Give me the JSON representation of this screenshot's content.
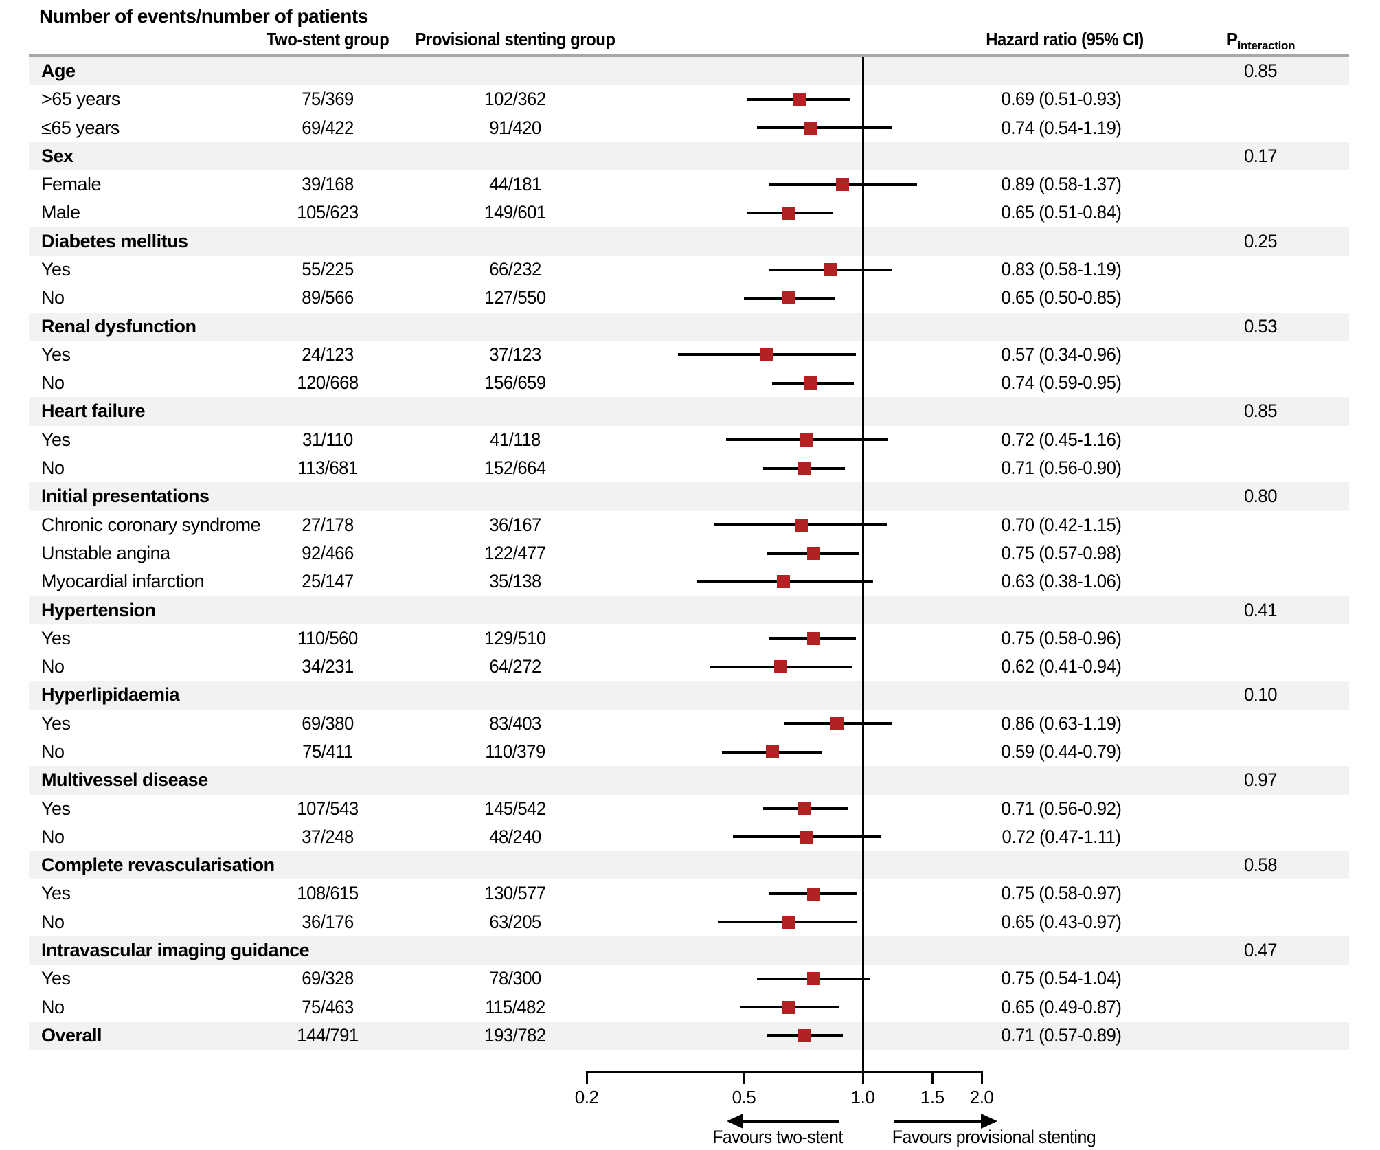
{
  "title": "Number of events/number of patients",
  "columns": {
    "two_stent": "Two-stent group",
    "provisional": "Provisional stenting group",
    "hazard": "Hazard ratio (95% CI)",
    "p_main": "P",
    "p_sub": "interaction"
  },
  "colors": {
    "marker": "#b22222",
    "band": "#f2f2f2",
    "rule": "#a8a8a8",
    "line": "#000000"
  },
  "axis": {
    "scale": "log10",
    "min": 0.2,
    "max": 2.0,
    "ref_line": 1.0,
    "ticks": [
      0.2,
      0.5,
      1.0,
      1.5,
      2.0
    ],
    "tick_labels": [
      "0.2",
      "0.5",
      "1.0",
      "1.5",
      "2.0"
    ]
  },
  "favours": {
    "left": "Favours two-stent",
    "right": "Favours provisional stenting"
  },
  "chart_data": {
    "type": "forest",
    "x_scale": "log",
    "xlim": [
      0.2,
      2.0
    ],
    "ref_line": 1.0,
    "rows": [
      {
        "kind": "section",
        "label": "Age",
        "p": "0.85"
      },
      {
        "kind": "item",
        "label": ">65 years",
        "two_stent": "75/369",
        "provisional": "102/362",
        "hr": 0.69,
        "ci_low": 0.51,
        "ci_high": 0.93,
        "hr_text": "0.69 (0.51-0.93)"
      },
      {
        "kind": "item",
        "label": "≤65 years",
        "two_stent": "69/422",
        "provisional": "91/420",
        "hr": 0.74,
        "ci_low": 0.54,
        "ci_high": 1.19,
        "hr_text": "0.74 (0.54-1.19)"
      },
      {
        "kind": "section",
        "label": "Sex",
        "p": "0.17"
      },
      {
        "kind": "item",
        "label": "Female",
        "two_stent": "39/168",
        "provisional": "44/181",
        "hr": 0.89,
        "ci_low": 0.58,
        "ci_high": 1.37,
        "hr_text": "0.89 (0.58-1.37)"
      },
      {
        "kind": "item",
        "label": "Male",
        "two_stent": "105/623",
        "provisional": "149/601",
        "hr": 0.65,
        "ci_low": 0.51,
        "ci_high": 0.84,
        "hr_text": "0.65 (0.51-0.84)"
      },
      {
        "kind": "section",
        "label": "Diabetes mellitus",
        "p": "0.25"
      },
      {
        "kind": "item",
        "label": "Yes",
        "two_stent": "55/225",
        "provisional": "66/232",
        "hr": 0.83,
        "ci_low": 0.58,
        "ci_high": 1.19,
        "hr_text": "0.83 (0.58-1.19)"
      },
      {
        "kind": "item",
        "label": "No",
        "two_stent": "89/566",
        "provisional": "127/550",
        "hr": 0.65,
        "ci_low": 0.5,
        "ci_high": 0.85,
        "hr_text": "0.65 (0.50-0.85)"
      },
      {
        "kind": "section",
        "label": "Renal dysfunction",
        "p": "0.53"
      },
      {
        "kind": "item",
        "label": "Yes",
        "two_stent": "24/123",
        "provisional": "37/123",
        "hr": 0.57,
        "ci_low": 0.34,
        "ci_high": 0.96,
        "hr_text": "0.57 (0.34-0.96)"
      },
      {
        "kind": "item",
        "label": "No",
        "two_stent": "120/668",
        "provisional": "156/659",
        "hr": 0.74,
        "ci_low": 0.59,
        "ci_high": 0.95,
        "hr_text": "0.74 (0.59-0.95)"
      },
      {
        "kind": "section",
        "label": "Heart failure",
        "p": "0.85"
      },
      {
        "kind": "item",
        "label": "Yes",
        "two_stent": "31/110",
        "provisional": "41/118",
        "hr": 0.72,
        "ci_low": 0.45,
        "ci_high": 1.16,
        "hr_text": "0.72 (0.45-1.16)"
      },
      {
        "kind": "item",
        "label": "No",
        "two_stent": "113/681",
        "provisional": "152/664",
        "hr": 0.71,
        "ci_low": 0.56,
        "ci_high": 0.9,
        "hr_text": "0.71 (0.56-0.90)"
      },
      {
        "kind": "section",
        "label": "Initial presentations",
        "p": "0.80"
      },
      {
        "kind": "item",
        "label": "Chronic coronary syndrome",
        "two_stent": "27/178",
        "provisional": "36/167",
        "hr": 0.7,
        "ci_low": 0.42,
        "ci_high": 1.15,
        "hr_text": "0.70 (0.42-1.15)"
      },
      {
        "kind": "item",
        "label": "Unstable angina",
        "two_stent": "92/466",
        "provisional": "122/477",
        "hr": 0.75,
        "ci_low": 0.57,
        "ci_high": 0.98,
        "hr_text": "0.75 (0.57-0.98)"
      },
      {
        "kind": "item",
        "label": "Myocardial infarction",
        "two_stent": "25/147",
        "provisional": "35/138",
        "hr": 0.63,
        "ci_low": 0.38,
        "ci_high": 1.06,
        "hr_text": "0.63 (0.38-1.06)"
      },
      {
        "kind": "section",
        "label": "Hypertension",
        "p": "0.41"
      },
      {
        "kind": "item",
        "label": "Yes",
        "two_stent": "110/560",
        "provisional": "129/510",
        "hr": 0.75,
        "ci_low": 0.58,
        "ci_high": 0.96,
        "hr_text": "0.75 (0.58-0.96)"
      },
      {
        "kind": "item",
        "label": "No",
        "two_stent": "34/231",
        "provisional": "64/272",
        "hr": 0.62,
        "ci_low": 0.41,
        "ci_high": 0.94,
        "hr_text": "0.62 (0.41-0.94)"
      },
      {
        "kind": "section",
        "label": "Hyperlipidaemia",
        "p": "0.10"
      },
      {
        "kind": "item",
        "label": "Yes",
        "two_stent": "69/380",
        "provisional": "83/403",
        "hr": 0.86,
        "ci_low": 0.63,
        "ci_high": 1.19,
        "hr_text": "0.86 (0.63-1.19)"
      },
      {
        "kind": "item",
        "label": "No",
        "two_stent": "75/411",
        "provisional": "110/379",
        "hr": 0.59,
        "ci_low": 0.44,
        "ci_high": 0.79,
        "hr_text": "0.59 (0.44-0.79)"
      },
      {
        "kind": "section",
        "label": "Multivessel disease",
        "p": "0.97"
      },
      {
        "kind": "item",
        "label": "Yes",
        "two_stent": "107/543",
        "provisional": "145/542",
        "hr": 0.71,
        "ci_low": 0.56,
        "ci_high": 0.92,
        "hr_text": "0.71 (0.56-0.92)"
      },
      {
        "kind": "item",
        "label": "No",
        "two_stent": "37/248",
        "provisional": "48/240",
        "hr": 0.72,
        "ci_low": 0.47,
        "ci_high": 1.11,
        "hr_text": "0.72 (0.47-1.11)"
      },
      {
        "kind": "section",
        "label": "Complete revascularisation",
        "p": "0.58"
      },
      {
        "kind": "item",
        "label": "Yes",
        "two_stent": "108/615",
        "provisional": "130/577",
        "hr": 0.75,
        "ci_low": 0.58,
        "ci_high": 0.97,
        "hr_text": "0.75 (0.58-0.97)"
      },
      {
        "kind": "item",
        "label": "No",
        "two_stent": "36/176",
        "provisional": "63/205",
        "hr": 0.65,
        "ci_low": 0.43,
        "ci_high": 0.97,
        "hr_text": "0.65 (0.43-0.97)"
      },
      {
        "kind": "section",
        "label": "Intravascular imaging guidance",
        "p": "0.47"
      },
      {
        "kind": "item",
        "label": "Yes",
        "two_stent": "69/328",
        "provisional": "78/300",
        "hr": 0.75,
        "ci_low": 0.54,
        "ci_high": 1.04,
        "hr_text": "0.75 (0.54-1.04)"
      },
      {
        "kind": "item",
        "label": "No",
        "two_stent": "75/463",
        "provisional": "115/482",
        "hr": 0.65,
        "ci_low": 0.49,
        "ci_high": 0.87,
        "hr_text": "0.65 (0.49-0.87)"
      },
      {
        "kind": "overall",
        "label": "Overall",
        "two_stent": "144/791",
        "provisional": "193/782",
        "hr": 0.71,
        "ci_low": 0.57,
        "ci_high": 0.89,
        "hr_text": "0.71 (0.57-0.89)"
      }
    ]
  }
}
